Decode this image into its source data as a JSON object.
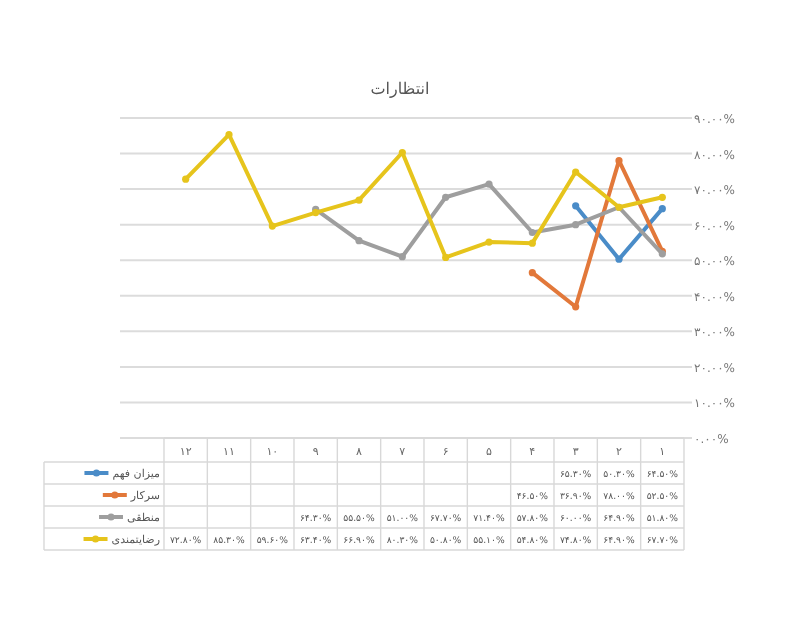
{
  "chart_data": {
    "type": "line",
    "title": "انتظارات",
    "categories": [
      "۱۲",
      "۱۱",
      "۱۰",
      "۹",
      "۸",
      "۷",
      "۶",
      "۵",
      "۴",
      "۳",
      "۲",
      "۱"
    ],
    "series": [
      {
        "name": "میزان فهم",
        "color": "#4a8cc8",
        "values": [
          null,
          null,
          null,
          null,
          null,
          null,
          null,
          null,
          null,
          65.3,
          50.3,
          64.5
        ],
        "value_labels": [
          null,
          null,
          null,
          null,
          null,
          null,
          null,
          null,
          null,
          "۶۵.۳۰%",
          "۵۰.۳۰%",
          "۶۴.۵۰%"
        ]
      },
      {
        "name": "سرکار",
        "color": "#e2783a",
        "values": [
          null,
          null,
          null,
          null,
          null,
          null,
          null,
          null,
          46.5,
          36.9,
          78.0,
          52.5
        ],
        "value_labels": [
          null,
          null,
          null,
          null,
          null,
          null,
          null,
          null,
          "۴۶.۵۰%",
          "۳۶.۹۰%",
          "۷۸.۰۰%",
          "۵۲.۵۰%"
        ]
      },
      {
        "name": "منطقی",
        "color": "#9e9e9e",
        "values": [
          null,
          null,
          null,
          64.3,
          55.5,
          51.0,
          67.7,
          71.4,
          57.8,
          60.0,
          64.9,
          51.8
        ],
        "value_labels": [
          null,
          null,
          null,
          "۶۴.۳۰%",
          "۵۵.۵۰%",
          "۵۱.۰۰%",
          "۶۷.۷۰%",
          "۷۱.۴۰%",
          "۵۷.۸۰%",
          "۶۰.۰۰%",
          "۶۴.۹۰%",
          "۵۱.۸۰%"
        ]
      },
      {
        "name": "رضایتمندی",
        "color": "#e6c41c",
        "values": [
          72.8,
          85.3,
          59.6,
          63.4,
          66.9,
          80.3,
          50.8,
          55.1,
          54.8,
          74.8,
          64.9,
          67.7
        ],
        "value_labels": [
          "۷۲.۸۰%",
          "۸۵.۳۰%",
          "۵۹.۶۰%",
          "۶۳.۴۰%",
          "۶۶.۹۰%",
          "۸۰.۳۰%",
          "۵۰.۸۰%",
          "۵۵.۱۰%",
          "۵۴.۸۰%",
          "۷۴.۸۰%",
          "۶۴.۹۰%",
          "۶۷.۷۰%"
        ]
      }
    ],
    "ylim": [
      0,
      90
    ],
    "yticks": [
      {
        "value": 0,
        "label": "۰.۰۰%"
      },
      {
        "value": 10,
        "label": "۱۰.۰۰%"
      },
      {
        "value": 20,
        "label": "۲۰.۰۰%"
      },
      {
        "value": 30,
        "label": "۳۰.۰۰%"
      },
      {
        "value": 40,
        "label": "۴۰.۰۰%"
      },
      {
        "value": 50,
        "label": "۵۰.۰۰%"
      },
      {
        "value": 60,
        "label": "۶۰.۰۰%"
      },
      {
        "value": 70,
        "label": "۷۰.۰۰%"
      },
      {
        "value": 80,
        "label": "۸۰.۰۰%"
      },
      {
        "value": 90,
        "label": "۹۰.۰۰%"
      }
    ],
    "grid": "y",
    "marker": "circle",
    "line_style": "solid",
    "legend": "bottom"
  }
}
